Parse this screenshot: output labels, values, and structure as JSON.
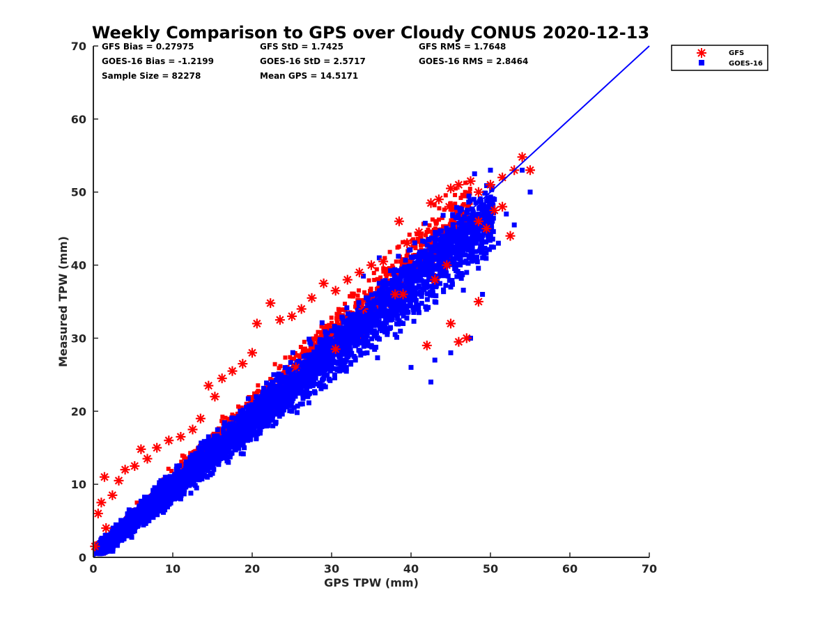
{
  "chart_data": {
    "type": "scatter",
    "title": "Weekly Comparison to GPS over Cloudy CONUS 2020-12-13",
    "xlabel": "GPS TPW (mm)",
    "ylabel": "Measured TPW (mm)",
    "xlim": [
      0,
      70
    ],
    "ylim": [
      0,
      70
    ],
    "xticks": [
      0,
      10,
      20,
      30,
      40,
      50,
      60,
      70
    ],
    "yticks": [
      0,
      10,
      20,
      30,
      40,
      50,
      60,
      70
    ],
    "grid": false,
    "legend_position": "outside-top-right",
    "reference_line": {
      "x": [
        0,
        70
      ],
      "y": [
        0,
        70
      ],
      "color": "#0000ff"
    },
    "stats": {
      "gfs_bias": "GFS Bias = 0.27975",
      "gfs_std": "GFS StD = 1.7425",
      "gfs_rms": "GFS RMS = 1.7648",
      "goes_bias": "GOES-16 Bias = -1.2199",
      "goes_std": "GOES-16 StD = 2.5717",
      "goes_rms": "GOES-16 RMS = 2.8464",
      "sample_size": "Sample Size = 82278",
      "mean_gps": "Mean GPS = 14.5171"
    },
    "series": [
      {
        "name": "GFS",
        "marker": "asterisk",
        "color": "#ff0000",
        "x": [
          0.2,
          0.6,
          1.0,
          1.4,
          1.6,
          2.4,
          3.2,
          4.0,
          5.2,
          6.0,
          6.8,
          8.0,
          9.5,
          11.0,
          12.5,
          13.5,
          14.5,
          15.3,
          16.2,
          17.5,
          18.8,
          20.0,
          20.6,
          22.3,
          23.5,
          25.0,
          26.2,
          27.5,
          29.0,
          30.5,
          32.0,
          33.5,
          35.0,
          36.5,
          38.5,
          39.5,
          41.0,
          42.5,
          43.5,
          45.0,
          46.0,
          47.5,
          48.5,
          50.0,
          51.5,
          53.0,
          54.0,
          55.0,
          50.5,
          51.5,
          52.5,
          48.5,
          49.5,
          44.5,
          43.0,
          45.0,
          47.0,
          48.5,
          46.0,
          42.0,
          30.5,
          38.0,
          25.5,
          34.0,
          39.0,
          44.8
        ],
        "y": [
          1.5,
          6.0,
          7.5,
          11.0,
          4.0,
          8.5,
          10.5,
          12.0,
          12.5,
          14.8,
          13.5,
          15.0,
          16.0,
          16.5,
          17.5,
          19.0,
          23.5,
          22.0,
          24.5,
          25.5,
          26.5,
          28.0,
          32.0,
          34.8,
          32.5,
          33.0,
          34.0,
          35.5,
          37.5,
          36.5,
          38.0,
          39.0,
          40.0,
          40.5,
          46.0,
          43.0,
          44.5,
          48.5,
          49.0,
          50.5,
          51.0,
          51.5,
          50.0,
          51.0,
          52.0,
          53.0,
          54.8,
          53.0,
          47.5,
          48.0,
          44.0,
          46.0,
          45.0,
          40.0,
          38.0,
          32.0,
          30.0,
          35.0,
          29.5,
          29.0,
          28.5,
          36.0,
          26.0,
          34.0,
          36.0,
          48.0
        ]
      },
      {
        "name": "GOES-16",
        "marker": "square",
        "color": "#0000ff",
        "x": [
          1.0,
          2.0,
          3.5,
          5.0,
          7.0,
          9.0,
          11.0,
          13.0,
          15.0,
          17.0,
          19.0,
          21.0,
          23.0,
          25.0,
          27.0,
          29.0,
          31.0,
          33.0,
          35.0,
          37.0,
          39.0,
          41.0,
          43.0,
          45.0,
          47.0,
          49.0,
          51.0,
          53.0,
          55.0,
          2.5,
          4.5,
          6.5,
          8.5,
          10.5,
          12.5,
          14.5,
          16.5,
          18.5,
          20.5,
          22.5,
          24.5,
          26.5,
          28.5,
          30.5,
          32.5,
          34.5,
          36.5,
          38.5,
          40.5,
          42.5,
          44.5,
          46.5,
          48.5,
          50.5,
          54.0,
          1.5,
          3.0,
          5.5,
          8.0,
          10.0,
          12.0,
          14.0,
          16.0,
          18.0,
          20.0,
          22.0,
          24.0,
          26.0,
          28.0,
          30.0,
          32.0,
          34.0,
          36.0,
          38.0,
          40.0,
          42.0,
          44.0,
          46.0,
          48.0,
          50.0,
          52.0,
          47.5,
          42.5,
          40.0,
          38.0,
          45.0,
          49.0,
          43.0,
          34.0,
          36.0,
          48.0,
          50.0
        ],
        "y": [
          1.0,
          1.5,
          2.5,
          3.5,
          5.0,
          6.5,
          8.0,
          9.5,
          11.5,
          13.0,
          15.0,
          17.0,
          18.5,
          20.0,
          22.0,
          23.5,
          25.5,
          27.0,
          29.0,
          30.5,
          32.0,
          33.5,
          35.0,
          37.0,
          39.0,
          41.0,
          43.0,
          45.5,
          50.0,
          4.0,
          6.5,
          8.0,
          10.5,
          12.5,
          14.0,
          16.5,
          18.0,
          20.0,
          22.0,
          24.0,
          25.5,
          27.5,
          29.5,
          31.0,
          33.0,
          34.5,
          36.5,
          38.0,
          40.0,
          42.0,
          43.5,
          45.0,
          47.0,
          49.0,
          53.0,
          3.0,
          2.0,
          5.0,
          6.0,
          8.5,
          10.0,
          12.0,
          13.5,
          15.5,
          17.5,
          19.0,
          21.0,
          23.0,
          24.5,
          26.5,
          28.0,
          30.0,
          32.0,
          34.0,
          35.5,
          37.5,
          39.5,
          41.5,
          43.0,
          45.0,
          47.0,
          30.0,
          24.0,
          26.0,
          30.5,
          28.0,
          36.0,
          27.0,
          38.5,
          41.0,
          52.5,
          53.0
        ]
      }
    ]
  }
}
